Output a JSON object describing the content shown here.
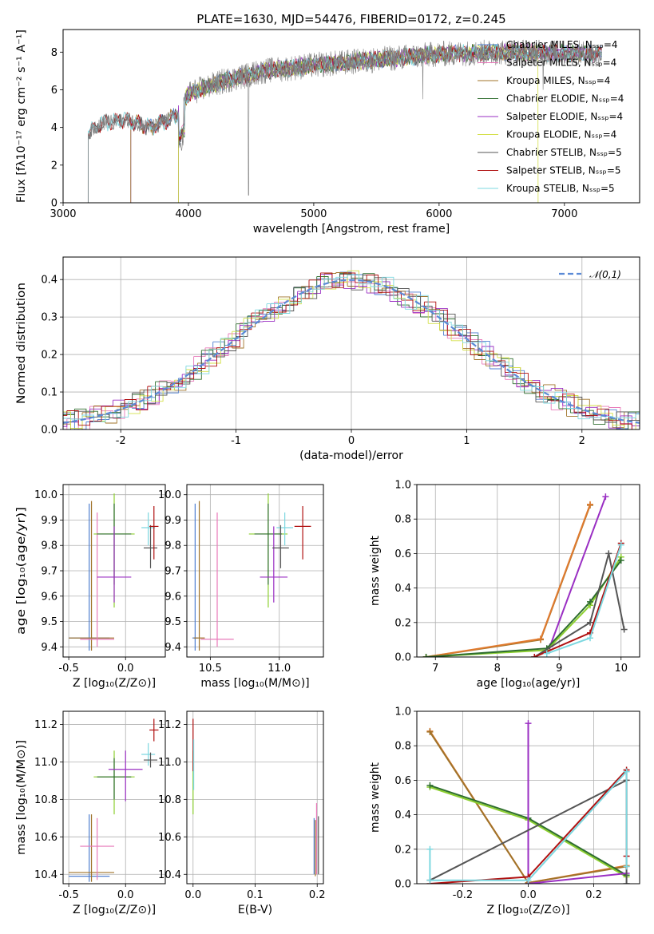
{
  "figure_title": "PLATE=1630, MJD=54476, FIBERID=0172, z=0.245",
  "colors": {
    "chabrier_miles": "#4f7fd0",
    "salpeter_miles": "#e879b9",
    "kroupa_miles": "#a0732a",
    "chabrier_elodie": "#2f6e2f",
    "salpeter_elodie": "#9a2fc3",
    "kroupa_elodie": "#d4e04a",
    "chabrier_stelib": "#555555",
    "salpeter_stelib": "#b01010",
    "kroupa_stelib": "#7dd8e0",
    "orange": "#e07a2e",
    "lime": "#8ccf2f",
    "normal": "#5b8ad6"
  },
  "chart_data": [
    {
      "id": "spectrum",
      "type": "line",
      "title": "PLATE=1630, MJD=54476, FIBERID=0172, z=0.245",
      "xlabel": "wavelength [Angstrom, rest frame]",
      "ylabel": "Flux [fλ10⁻¹⁷ erg cm⁻² s⁻¹ A⁻¹]",
      "xlim": [
        3000,
        7600
      ],
      "ylim": [
        0,
        9.2
      ],
      "xticks": [
        3000,
        4000,
        5000,
        6000,
        7000
      ],
      "yticks": [
        0,
        2,
        4,
        6,
        8
      ],
      "legend_position": "upper right",
      "legend": [
        "Chabrier MILES, Nₛₛₚ=4",
        "Salpeter MILES, Nₛₛₚ=4",
        "Kroupa MILES, Nₛₛₚ=4",
        "Chabrier ELODIE, Nₛₛₚ=4",
        "Salpeter ELODIE, Nₛₛₚ=4",
        "Kroupa ELODIE, Nₛₛₚ=4",
        "Chabrier STELIB, Nₛₛₚ=5",
        "Salpeter STELIB, Nₛₛₚ=5",
        "Kroupa STELIB, Nₛₛₚ=5"
      ],
      "continuum_points": [
        [
          3200,
          3.7
        ],
        [
          3300,
          4.2
        ],
        [
          3500,
          4.4
        ],
        [
          3700,
          4.0
        ],
        [
          3900,
          4.6
        ],
        [
          4000,
          5.8
        ],
        [
          4300,
          6.5
        ],
        [
          4600,
          7.0
        ],
        [
          5000,
          7.3
        ],
        [
          5500,
          7.6
        ],
        [
          6000,
          7.9
        ],
        [
          6500,
          8.0
        ],
        [
          7000,
          7.95
        ],
        [
          7300,
          7.9
        ]
      ],
      "drop_edges": [
        3200,
        3530,
        3920,
        6790
      ]
    },
    {
      "id": "residuals",
      "type": "histogram",
      "xlabel": "(data-model)/error",
      "ylabel": "Normed distribution",
      "xlim": [
        -2.5,
        2.5
      ],
      "ylim": [
        0,
        0.46
      ],
      "xticks": [
        -2,
        -1,
        0,
        1,
        2
      ],
      "yticks": [
        0.0,
        0.1,
        0.2,
        0.3,
        0.4
      ],
      "bin_width": 0.1,
      "legend": [
        "𝒩(0,1)"
      ],
      "legend_position": "upper right"
    },
    {
      "id": "age_vs_z",
      "type": "scatter",
      "xlabel": "Z [log₁₀(Z/Z⊙)]",
      "ylabel": "age  [log₁₀(age/yr)]",
      "xlim": [
        -0.55,
        0.35
      ],
      "ylim": [
        9.36,
        10.04
      ],
      "xticks": [
        -0.5,
        0.0
      ],
      "yticks": [
        9.4,
        9.5,
        9.6,
        9.7,
        9.8,
        9.9,
        10.0
      ],
      "points": [
        {
          "model": "chabrier_miles",
          "x": -0.32,
          "y": 9.435,
          "xerr": 0.18,
          "yerr": [
            0.05,
            0.53
          ]
        },
        {
          "model": "kroupa_miles",
          "x": -0.3,
          "y": 9.435,
          "xerr": 0.2,
          "yerr": [
            0.05,
            0.54
          ]
        },
        {
          "model": "salpeter_miles",
          "x": -0.25,
          "y": 9.43,
          "xerr": 0.15,
          "yerr": [
            0.03,
            0.5
          ]
        },
        {
          "model": "lime",
          "x": -0.1,
          "y": 9.845,
          "xerr": 0.18,
          "yerr": [
            0.29,
            0.16
          ]
        },
        {
          "model": "chabrier_elodie",
          "x": -0.1,
          "y": 9.845,
          "xerr": 0.15,
          "yerr": [
            0.2,
            0.12
          ]
        },
        {
          "model": "salpeter_elodie",
          "x": -0.1,
          "y": 9.675,
          "xerr": 0.15,
          "yerr": [
            0.1,
            0.2
          ]
        },
        {
          "model": "kroupa_stelib",
          "x": 0.2,
          "y": 9.87,
          "xerr": 0.06,
          "yerr": [
            0.07,
            0.06
          ]
        },
        {
          "model": "chabrier_stelib",
          "x": 0.22,
          "y": 9.79,
          "xerr": 0.06,
          "yerr": [
            0.08,
            0.09
          ]
        },
        {
          "model": "salpeter_stelib",
          "x": 0.25,
          "y": 9.875,
          "xerr": 0.04,
          "yerr": [
            0.13,
            0.08
          ]
        }
      ]
    },
    {
      "id": "age_vs_mass",
      "type": "scatter",
      "xlabel": "mass [log₁₀(M/M⊙)]",
      "ylabel": "",
      "xlim": [
        10.33,
        11.32
      ],
      "ylim": [
        9.36,
        10.04
      ],
      "xticks": [
        10.5,
        11.0
      ],
      "yticks": [
        9.4,
        9.5,
        9.6,
        9.7,
        9.8,
        9.9,
        10.0
      ],
      "points": [
        {
          "model": "chabrier_miles",
          "x": 10.39,
          "y": 9.435,
          "xerr": 0.02,
          "yerr": [
            0.05,
            0.53
          ]
        },
        {
          "model": "kroupa_miles",
          "x": 10.42,
          "y": 9.435,
          "xerr": 0.04,
          "yerr": [
            0.05,
            0.54
          ]
        },
        {
          "model": "salpeter_miles",
          "x": 10.55,
          "y": 9.43,
          "xerr": 0.12,
          "yerr": [
            0.03,
            0.5
          ]
        },
        {
          "model": "lime",
          "x": 10.92,
          "y": 9.845,
          "xerr": 0.14,
          "yerr": [
            0.29,
            0.16
          ]
        },
        {
          "model": "chabrier_elodie",
          "x": 10.92,
          "y": 9.845,
          "xerr": 0.1,
          "yerr": [
            0.2,
            0.12
          ]
        },
        {
          "model": "salpeter_elodie",
          "x": 10.96,
          "y": 9.675,
          "xerr": 0.1,
          "yerr": [
            0.1,
            0.2
          ]
        },
        {
          "model": "kroupa_stelib",
          "x": 11.04,
          "y": 9.87,
          "xerr": 0.06,
          "yerr": [
            0.07,
            0.06
          ]
        },
        {
          "model": "chabrier_stelib",
          "x": 11.01,
          "y": 9.79,
          "xerr": 0.06,
          "yerr": [
            0.08,
            0.09
          ]
        },
        {
          "model": "salpeter_stelib",
          "x": 11.17,
          "y": 9.875,
          "xerr": 0.06,
          "yerr": [
            0.13,
            0.08
          ]
        }
      ]
    },
    {
      "id": "massweight_vs_age",
      "type": "line",
      "xlabel": "age  [log₁₀(age/yr)]",
      "ylabel": "mass weight",
      "xlim": [
        6.7,
        10.3
      ],
      "ylim": [
        0,
        1.0
      ],
      "xticks": [
        7,
        8,
        9,
        10
      ],
      "yticks": [
        0.0,
        0.2,
        0.4,
        0.6,
        0.8,
        1.0
      ],
      "series": [
        {
          "model": "kroupa_miles",
          "x": [
            6.85,
            8.7,
            9.5
          ],
          "y": [
            0.0,
            0.1,
            0.88
          ]
        },
        {
          "model": "orange",
          "x": [
            6.85,
            8.7,
            9.5
          ],
          "y": [
            0.0,
            0.105,
            0.885
          ]
        },
        {
          "model": "salpeter_elodie",
          "x": [
            8.85,
            9.75
          ],
          "y": [
            0.06,
            0.93
          ]
        },
        {
          "model": "lime",
          "x": [
            6.85,
            8.8,
            9.5,
            10.0
          ],
          "y": [
            0.0,
            0.04,
            0.3,
            0.58
          ]
        },
        {
          "model": "chabrier_elodie",
          "x": [
            6.85,
            8.8,
            9.5,
            10.0
          ],
          "y": [
            0.0,
            0.05,
            0.32,
            0.56
          ]
        },
        {
          "model": "chabrier_stelib",
          "x": [
            8.6,
            9.5,
            9.8,
            10.05
          ],
          "y": [
            0.0,
            0.2,
            0.6,
            0.16
          ]
        },
        {
          "model": "salpeter_stelib",
          "x": [
            8.6,
            9.5,
            10.0
          ],
          "y": [
            0.0,
            0.14,
            0.66
          ]
        },
        {
          "model": "kroupa_stelib",
          "x": [
            8.8,
            9.5,
            10.0
          ],
          "y": [
            0.02,
            0.11,
            0.65
          ]
        }
      ]
    },
    {
      "id": "mass_vs_z",
      "type": "scatter",
      "xlabel": "Z [log₁₀(Z/Z⊙)]",
      "ylabel": "mass [log₁₀(M/M⊙)]",
      "xlim": [
        -0.55,
        0.35
      ],
      "ylim": [
        10.35,
        11.27
      ],
      "xticks": [
        -0.5,
        0.0
      ],
      "yticks": [
        10.4,
        10.6,
        10.8,
        11.0,
        11.2
      ],
      "points": [
        {
          "model": "chabrier_miles",
          "x": -0.32,
          "y": 10.39,
          "xerr": 0.18,
          "yerr": [
            0.03,
            0.33
          ]
        },
        {
          "model": "kroupa_miles",
          "x": -0.3,
          "y": 10.41,
          "xerr": 0.2,
          "yerr": [
            0.05,
            0.31
          ]
        },
        {
          "model": "salpeter_miles",
          "x": -0.25,
          "y": 10.55,
          "xerr": 0.15,
          "yerr": [
            0.18,
            0.15
          ]
        },
        {
          "model": "lime",
          "x": -0.1,
          "y": 10.92,
          "xerr": 0.18,
          "yerr": [
            0.2,
            0.14
          ]
        },
        {
          "model": "chabrier_elodie",
          "x": -0.1,
          "y": 10.92,
          "xerr": 0.15,
          "yerr": [
            0.12,
            0.1
          ]
        },
        {
          "model": "salpeter_elodie",
          "x": 0.0,
          "y": 10.96,
          "xerr": 0.15,
          "yerr": [
            0.17,
            0.1
          ]
        },
        {
          "model": "kroupa_stelib",
          "x": 0.2,
          "y": 11.04,
          "xerr": 0.06,
          "yerr": [
            0.06,
            0.06
          ]
        },
        {
          "model": "chabrier_stelib",
          "x": 0.22,
          "y": 11.01,
          "xerr": 0.06,
          "yerr": [
            0.04,
            0.04
          ]
        },
        {
          "model": "salpeter_stelib",
          "x": 0.25,
          "y": 11.17,
          "xerr": 0.04,
          "yerr": [
            0.06,
            0.06
          ]
        }
      ]
    },
    {
      "id": "mass_vs_ebv",
      "type": "scatter",
      "xlabel": "E(B-V)",
      "ylabel": "",
      "xlim": [
        -0.01,
        0.21
      ],
      "ylim": [
        10.35,
        11.27
      ],
      "xticks": [
        0.0,
        0.1,
        0.2
      ],
      "yticks": [
        10.4,
        10.6,
        10.8,
        11.0,
        11.2
      ],
      "points": [
        {
          "model": "lime",
          "x": 0.0,
          "y": 10.92,
          "xerr": 0.0,
          "yerr": [
            0.2,
            0.14
          ]
        },
        {
          "model": "salpeter_stelib",
          "x": 0.0,
          "y": 11.05,
          "xerr": 0.0,
          "yerr": [
            0.1,
            0.18
          ]
        },
        {
          "model": "kroupa_stelib",
          "x": 0.001,
          "y": 11.0,
          "xerr": 0.0,
          "yerr": [
            0.15,
            0.12
          ]
        },
        {
          "model": "chabrier_miles",
          "x": 0.195,
          "y": 10.55,
          "xerr": 0.0,
          "yerr": [
            0.15,
            0.15
          ]
        },
        {
          "model": "kroupa_miles",
          "x": 0.197,
          "y": 10.53,
          "xerr": 0.0,
          "yerr": [
            0.14,
            0.16
          ]
        },
        {
          "model": "salpeter_miles",
          "x": 0.199,
          "y": 10.6,
          "xerr": 0.0,
          "yerr": [
            0.2,
            0.18
          ]
        },
        {
          "model": "chabrier_stelib",
          "x": 0.202,
          "y": 10.55,
          "xerr": 0.0,
          "yerr": [
            0.15,
            0.16
          ]
        }
      ]
    },
    {
      "id": "massweight_vs_z",
      "type": "line",
      "xlabel": "Z [log₁₀(Z/Z⊙)]",
      "ylabel": "mass weight",
      "xlim": [
        -0.34,
        0.34
      ],
      "ylim": [
        0,
        1.0
      ],
      "xticks": [
        -0.2,
        0.0,
        0.2
      ],
      "yticks": [
        0.0,
        0.2,
        0.4,
        0.6,
        0.8,
        1.0
      ],
      "series": [
        {
          "model": "orange",
          "x": [
            -0.3,
            0.0,
            0.3
          ],
          "y": [
            0.885,
            0.005,
            0.105
          ]
        },
        {
          "model": "kroupa_miles",
          "x": [
            -0.3,
            0.0,
            0.3
          ],
          "y": [
            0.88,
            0.005,
            0.1
          ]
        },
        {
          "model": "lime",
          "x": [
            -0.3,
            0.0,
            0.3
          ],
          "y": [
            0.56,
            0.37,
            0.04
          ]
        },
        {
          "model": "chabrier_elodie",
          "x": [
            -0.3,
            0.0,
            0.3
          ],
          "y": [
            0.57,
            0.38,
            0.05
          ]
        },
        {
          "model": "salpeter_elodie",
          "x": [
            0.0,
            0.0,
            0.3
          ],
          "y": [
            0.93,
            0.0,
            0.06
          ]
        },
        {
          "model": "chabrier_stelib",
          "x": [
            -0.3,
            0.3,
            0.3
          ],
          "y": [
            0.02,
            0.6,
            0.0
          ]
        },
        {
          "model": "salpeter_stelib",
          "x": [
            -0.3,
            0.0,
            0.3,
            0.3
          ],
          "y": [
            0.0,
            0.04,
            0.66,
            0.16
          ]
        },
        {
          "model": "kroupa_stelib",
          "x": [
            -0.3,
            -0.3,
            0.0,
            0.3,
            0.3
          ],
          "y": [
            0.2,
            0.02,
            0.02,
            0.65,
            0.1
          ]
        }
      ]
    }
  ]
}
